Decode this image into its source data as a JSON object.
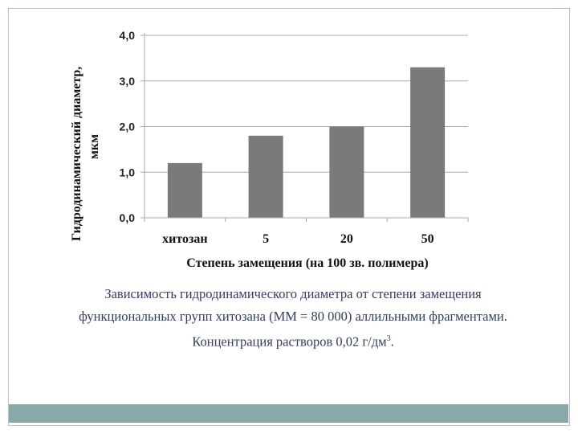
{
  "chart_data": {
    "type": "bar",
    "categories": [
      "хитозан",
      "5",
      "20",
      "50"
    ],
    "values": [
      1.2,
      1.8,
      2.0,
      3.3
    ],
    "ylim": [
      0,
      4
    ],
    "yticks": [
      "0,0",
      "1,0",
      "2,0",
      "3,0",
      "4,0"
    ],
    "ylabel_line1": "Гидродинамический диаметр,",
    "ylabel_line2": "мкм",
    "xlabel": "Степень замещения (на 100 зв. полимера)",
    "bar_color": "#7a7a7a",
    "grid": true
  },
  "caption": {
    "line1": "Зависимость гидродинамического диаметра от степени замещения",
    "line2": "функциональных групп хитозана (ММ = 80 000) аллильными фрагментами.",
    "line3": "Концентрация растворов 0,02 г/дм",
    "line3_sup": "3",
    "line3_end": "."
  },
  "colors": {
    "frame": "#b7c3c3",
    "footer_bar": "#88a9a9",
    "caption_text": "#333c66"
  }
}
